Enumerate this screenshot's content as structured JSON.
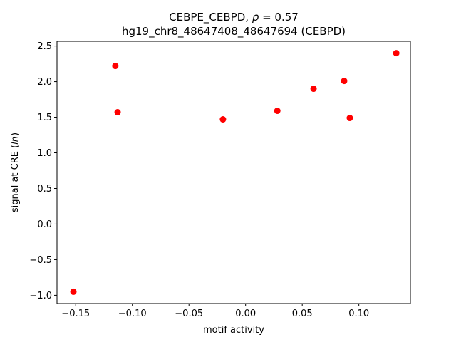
{
  "chart_data": {
    "type": "scatter",
    "title_line1_prefix": "CEBPE_CEBPD, ",
    "title_rho_symbol": "ρ",
    "title_rho_value": " = 0.57",
    "title_line2": "hg19_chr8_48647408_48647694 (CEBPD)",
    "xlabel": "motif activity",
    "ylabel": "signal at CRE (ln)",
    "ylabel_parts": {
      "before": "signal at CRE (",
      "italic": "ln",
      "after": ")"
    },
    "xlim": [
      -0.1665,
      0.1455
    ],
    "ylim": [
      -1.116,
      2.566
    ],
    "x_ticks": [
      -0.15,
      -0.1,
      -0.05,
      0.0,
      0.05,
      0.1
    ],
    "x_tick_labels": [
      "−0.15",
      "−0.10",
      "−0.05",
      "0.00",
      "0.05",
      "0.10"
    ],
    "y_ticks": [
      -1.0,
      -0.5,
      0.0,
      0.5,
      1.0,
      1.5,
      2.0,
      2.5
    ],
    "y_tick_labels": [
      "−1.0",
      "−0.5",
      "0.0",
      "0.5",
      "1.0",
      "1.5",
      "2.0",
      "2.5"
    ],
    "grid": false,
    "marker_color": "#ff0000",
    "points": [
      {
        "x": -0.152,
        "y": -0.95
      },
      {
        "x": -0.115,
        "y": 2.22
      },
      {
        "x": -0.113,
        "y": 1.57
      },
      {
        "x": -0.02,
        "y": 1.47
      },
      {
        "x": 0.028,
        "y": 1.59
      },
      {
        "x": 0.06,
        "y": 1.9
      },
      {
        "x": 0.087,
        "y": 2.01
      },
      {
        "x": 0.092,
        "y": 1.49
      },
      {
        "x": 0.133,
        "y": 2.4
      }
    ]
  }
}
